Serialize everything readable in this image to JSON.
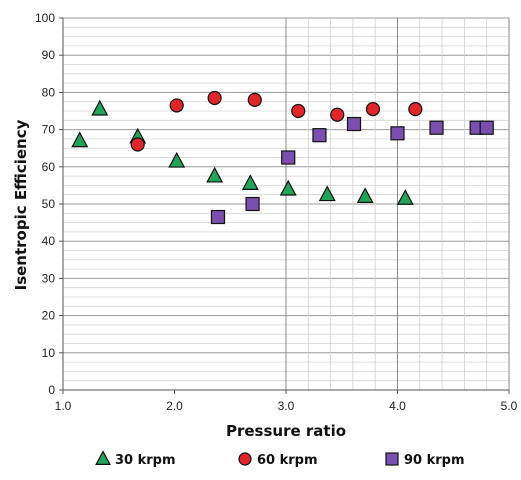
{
  "chart_data": {
    "type": "scatter",
    "xlabel": "Pressure ratio",
    "ylabel": "Isentropic Efficiency",
    "xlim": [
      1.0,
      5.0
    ],
    "ylim": [
      0,
      100
    ],
    "x_ticks": [
      "1.0",
      "2.0",
      "3.0",
      "4.0",
      "5.0"
    ],
    "y_ticks": [
      "0",
      "10",
      "20",
      "30",
      "40",
      "50",
      "60",
      "70",
      "80",
      "90",
      "100"
    ],
    "grid": "on",
    "legend_position": "bottom",
    "series": [
      {
        "name": "30 krpm",
        "marker": "triangle",
        "color": "#22a35a",
        "points": [
          [
            1.15,
            67
          ],
          [
            1.33,
            75.5
          ],
          [
            1.67,
            68
          ],
          [
            2.02,
            61.5
          ],
          [
            2.36,
            57.5
          ],
          [
            2.68,
            55.5
          ],
          [
            3.02,
            54
          ],
          [
            3.37,
            52.5
          ],
          [
            3.71,
            52
          ],
          [
            4.07,
            51.5
          ]
        ]
      },
      {
        "name": "60 krpm",
        "marker": "circle",
        "color": "#e0262a",
        "points": [
          [
            1.67,
            66
          ],
          [
            2.02,
            76.5
          ],
          [
            2.36,
            78.5
          ],
          [
            2.72,
            78
          ],
          [
            3.11,
            75
          ],
          [
            3.46,
            74
          ],
          [
            3.78,
            75.5
          ],
          [
            4.16,
            75.5
          ]
        ]
      },
      {
        "name": "90 krpm",
        "marker": "square",
        "color": "#7b4fb0",
        "points": [
          [
            2.39,
            46.5
          ],
          [
            2.7,
            50
          ],
          [
            3.02,
            62.5
          ],
          [
            3.3,
            68.5
          ],
          [
            3.61,
            71.5
          ],
          [
            4.0,
            69
          ],
          [
            4.35,
            70.5
          ],
          [
            4.71,
            70.5
          ],
          [
            4.8,
            70.5
          ]
        ]
      }
    ]
  }
}
